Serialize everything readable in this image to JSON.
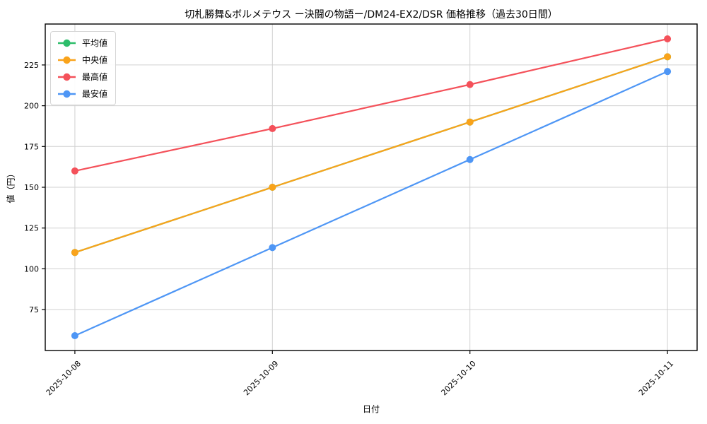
{
  "figure": {
    "background": "#ffffff"
  },
  "chart_data": {
    "type": "line",
    "title": "切札勝舞&ボルメテウス ー決闘の物語ー/DM24-EX2/DSR 価格推移（過去30日間）",
    "xlabel": "日付",
    "ylabel": "値（円）",
    "categories": [
      "2025-10-08",
      "2025-10-09",
      "2025-10-10",
      "2025-10-11"
    ],
    "series": [
      {
        "key": "mean",
        "name": "平均値",
        "color": "#2dbd6a",
        "values": [
          110,
          150,
          190,
          230
        ],
        "hidden_under": "中央値"
      },
      {
        "key": "median",
        "name": "中央値",
        "color": "#f9a31b",
        "values": [
          110,
          150,
          190,
          230
        ]
      },
      {
        "key": "max",
        "name": "最高値",
        "color": "#f4515a",
        "values": [
          160,
          186,
          213,
          241
        ]
      },
      {
        "key": "min",
        "name": "最安値",
        "color": "#4e96f5",
        "values": [
          59,
          113,
          167,
          221
        ]
      }
    ],
    "yticks": [
      75,
      100,
      125,
      150,
      175,
      200,
      225
    ],
    "ylim": [
      49.9,
      250.1
    ],
    "x_margin": 0.15,
    "grid": true,
    "grid_color": "#d0d0d0",
    "spine_color": "#000000",
    "tick_label_color": "#000000",
    "legend_position": "upper left",
    "marker": "circle",
    "marker_radius": 5,
    "line_width": 2.2,
    "x_tick_rotation": 45
  }
}
